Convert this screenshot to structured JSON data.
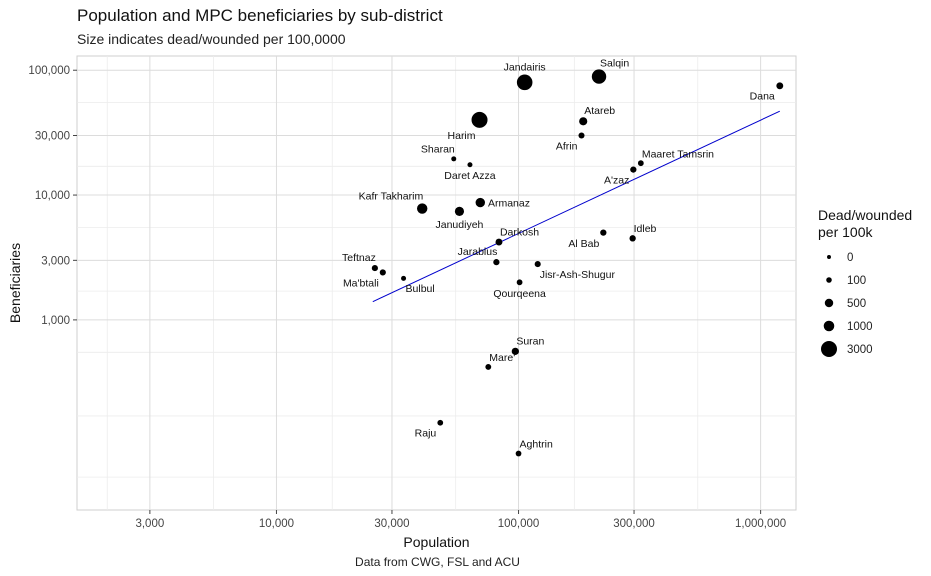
{
  "chart_data": {
    "type": "scatter",
    "title": "Population and MPC beneficiaries by sub-district",
    "subtitle": "Size indicates dead/wounded per 100,0000",
    "caption": "Data from CWG, FSL and ACU",
    "xlabel": "Population",
    "ylabel": "Beneficiaries",
    "x_scale": "log10",
    "y_scale": "log10",
    "xlim": [
      1500,
      1400000
    ],
    "ylim": [
      30,
      130000
    ],
    "x_ticks": [
      3000,
      10000,
      30000,
      100000,
      300000,
      1000000
    ],
    "x_tick_labels": [
      "3,000",
      "10,000",
      "30,000",
      "100,000",
      "300,000",
      "1,000,000"
    ],
    "y_ticks": [
      1000,
      3000,
      10000,
      30000,
      100000
    ],
    "y_tick_labels": [
      "1,000",
      "3,000",
      "10,000",
      "30,000",
      "100,000"
    ],
    "grid": true,
    "legend": {
      "title": "Dead/wounded per 100k",
      "position": "right",
      "entries": [
        {
          "label": "0",
          "value": 0
        },
        {
          "label": "100",
          "value": 100
        },
        {
          "label": "500",
          "value": 500
        },
        {
          "label": "1000",
          "value": 1000
        },
        {
          "label": "3000",
          "value": 3000
        }
      ]
    },
    "trend_line": {
      "color": "#0000cc",
      "x": [
        25000,
        1200000
      ],
      "y": [
        1400,
        47000
      ]
    },
    "points": [
      {
        "name": "Jandairis",
        "x": 106000,
        "y": 80000,
        "size": 2800,
        "label_pos": "above"
      },
      {
        "name": "Salqin",
        "x": 215000,
        "y": 89000,
        "size": 2300,
        "label_pos": "above-right"
      },
      {
        "name": "Dana",
        "x": 1200000,
        "y": 75000,
        "size": 250,
        "label_pos": "left-below"
      },
      {
        "name": "Harim",
        "x": 69000,
        "y": 40000,
        "size": 3000,
        "label_pos": "below-left"
      },
      {
        "name": "Atareb",
        "x": 185000,
        "y": 39000,
        "size": 450,
        "label_pos": "above-right"
      },
      {
        "name": "Afrin",
        "x": 182000,
        "y": 30000,
        "size": 150,
        "label_pos": "below-left"
      },
      {
        "name": "Sharan",
        "x": 54000,
        "y": 19500,
        "size": 60,
        "label_pos": "above-left"
      },
      {
        "name": "Daret Azza",
        "x": 63000,
        "y": 17500,
        "size": 60,
        "label_pos": "below"
      },
      {
        "name": "Maaret Tamsrin",
        "x": 320000,
        "y": 18000,
        "size": 120,
        "label_pos": "above-right"
      },
      {
        "name": "A'zaz",
        "x": 298000,
        "y": 16000,
        "size": 170,
        "label_pos": "below-left"
      },
      {
        "name": "Kafr Takharim",
        "x": 40000,
        "y": 7800,
        "size": 950,
        "label_pos": "above-left"
      },
      {
        "name": "Armanaz",
        "x": 69500,
        "y": 8700,
        "size": 700,
        "label_pos": "right"
      },
      {
        "name": "Janudiyeh",
        "x": 57000,
        "y": 7400,
        "size": 650,
        "label_pos": "below"
      },
      {
        "name": "Idleb",
        "x": 296000,
        "y": 4500,
        "size": 180,
        "label_pos": "above-right"
      },
      {
        "name": "Al Bab",
        "x": 224000,
        "y": 5000,
        "size": 170,
        "label_pos": "below-left"
      },
      {
        "name": "Darkosh",
        "x": 83000,
        "y": 4200,
        "size": 250,
        "label_pos": "above-right"
      },
      {
        "name": "Jarablus",
        "x": 81000,
        "y": 2900,
        "size": 170,
        "label_pos": "above-left"
      },
      {
        "name": "Jisr-Ash-Shugur",
        "x": 120000,
        "y": 2800,
        "size": 150,
        "label_pos": "below-right"
      },
      {
        "name": "Qourqeena",
        "x": 101000,
        "y": 2000,
        "size": 120,
        "label_pos": "below"
      },
      {
        "name": "Teftnaz",
        "x": 25500,
        "y": 2600,
        "size": 160,
        "label_pos": "above-left"
      },
      {
        "name": "Ma'btali",
        "x": 27500,
        "y": 2400,
        "size": 160,
        "label_pos": "below-left"
      },
      {
        "name": "Bulbul",
        "x": 33500,
        "y": 2150,
        "size": 60,
        "label_pos": "below-right"
      },
      {
        "name": "Suran",
        "x": 97000,
        "y": 560,
        "size": 300,
        "label_pos": "above-right"
      },
      {
        "name": "Mare'",
        "x": 75000,
        "y": 420,
        "size": 130,
        "label_pos": "above-right"
      },
      {
        "name": "Raju",
        "x": 47500,
        "y": 150,
        "size": 120,
        "label_pos": "below-left"
      },
      {
        "name": "Aghtrin",
        "x": 100000,
        "y": 85,
        "size": 120,
        "label_pos": "above-right"
      }
    ]
  }
}
